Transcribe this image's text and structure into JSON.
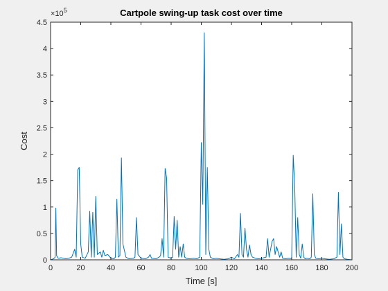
{
  "chart_data": {
    "type": "line",
    "title": "Cartpole swing-up task cost over time",
    "xlabel": "Time [s]",
    "ylabel": "Cost",
    "xlim": [
      0,
      200
    ],
    "ylim": [
      0,
      450000
    ],
    "x_ticks": [
      0,
      20,
      40,
      60,
      80,
      100,
      120,
      140,
      160,
      180,
      200
    ],
    "x_tick_labels": [
      "0",
      "20",
      "40",
      "60",
      "80",
      "100",
      "120",
      "140",
      "160",
      "180",
      "200"
    ],
    "y_ticks": [
      0,
      50000,
      100000,
      150000,
      200000,
      250000,
      300000,
      350000,
      400000,
      450000
    ],
    "y_tick_labels": [
      "0",
      "0.5",
      "1",
      "1.5",
      "2",
      "2.5",
      "3",
      "3.5",
      "4",
      "4.5"
    ],
    "y_exponent_base": "×10",
    "y_exponent_power": "5",
    "grid": false,
    "line_color": "#0072bd",
    "series": [
      {
        "x": [
          0,
          2,
          3,
          3.5,
          4,
          5,
          7,
          10,
          12,
          14,
          16,
          17,
          18,
          19,
          20,
          21,
          23,
          25,
          26,
          27,
          28,
          29,
          30,
          31,
          33,
          34,
          35,
          36,
          38,
          40,
          42,
          43,
          44,
          45,
          46,
          47,
          48,
          50,
          52,
          55,
          56,
          57,
          58,
          60,
          63,
          65,
          66,
          67,
          70,
          72,
          73,
          74,
          75,
          76,
          77,
          78,
          80,
          81,
          82,
          83,
          84,
          85,
          86,
          87,
          88,
          89,
          90,
          92,
          95,
          97,
          99,
          100,
          101,
          102,
          103,
          104,
          105,
          106,
          108,
          110,
          112,
          115,
          118,
          120,
          122,
          124,
          125,
          126,
          127,
          128,
          129,
          130,
          131,
          132,
          133,
          134,
          136,
          138,
          140,
          143,
          144,
          145,
          146,
          147,
          148,
          149,
          150,
          151,
          152,
          153,
          154,
          156,
          158,
          160,
          161,
          162,
          163,
          164,
          165,
          166,
          167,
          168,
          169,
          170,
          172,
          173,
          174,
          175,
          176,
          178,
          180,
          182,
          185,
          188,
          190,
          191,
          192,
          193,
          194,
          195,
          197,
          200
        ],
        "y": [
          0,
          2000,
          5000,
          98000,
          8000,
          3000,
          4000,
          2000,
          3000,
          5000,
          20000,
          5000,
          170000,
          175000,
          30000,
          5000,
          3000,
          15000,
          92000,
          5000,
          90000,
          5000,
          120000,
          10000,
          15000,
          5000,
          18000,
          8000,
          10000,
          3000,
          2000,
          5000,
          115000,
          5000,
          8000,
          193000,
          30000,
          5000,
          2000,
          3000,
          5000,
          80000,
          10000,
          3000,
          2000,
          5000,
          10000,
          3000,
          2000,
          5000,
          8000,
          40000,
          5000,
          173000,
          155000,
          5000,
          3000,
          5000,
          82000,
          20000,
          75000,
          5000,
          25000,
          5000,
          30000,
          5000,
          3000,
          2000,
          3000,
          2000,
          5000,
          222000,
          105000,
          430000,
          10000,
          175000,
          20000,
          5000,
          2000,
          3000,
          2000,
          1000,
          2000,
          5000,
          2000,
          10000,
          5000,
          88000,
          10000,
          5000,
          60000,
          20000,
          5000,
          28000,
          10000,
          5000,
          3000,
          2000,
          3000,
          5000,
          40000,
          5000,
          20000,
          35000,
          40000,
          10000,
          25000,
          15000,
          5000,
          15000,
          3000,
          2000,
          3000,
          2000,
          198000,
          140000,
          5000,
          80000,
          10000,
          3000,
          30000,
          5000,
          2000,
          3000,
          2000,
          5000,
          125000,
          10000,
          3000,
          2000,
          3000,
          2000,
          1000,
          2000,
          5000,
          128000,
          10000,
          68000,
          5000,
          2000,
          1000,
          0
        ]
      }
    ]
  }
}
